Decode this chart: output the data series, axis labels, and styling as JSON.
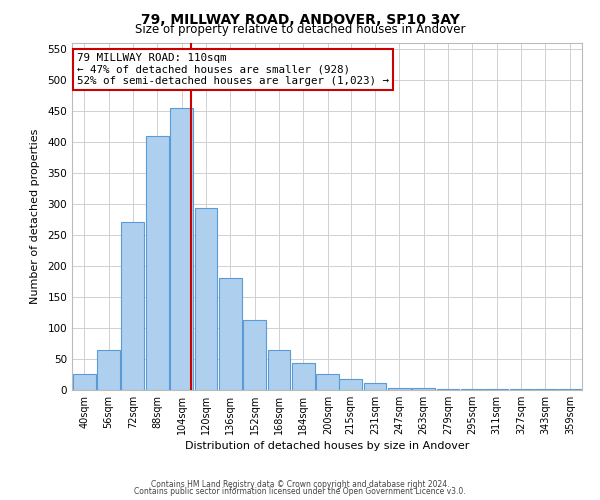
{
  "title": "79, MILLWAY ROAD, ANDOVER, SP10 3AY",
  "subtitle": "Size of property relative to detached houses in Andover",
  "xlabel": "Distribution of detached houses by size in Andover",
  "ylabel": "Number of detached properties",
  "bar_labels": [
    "40sqm",
    "56sqm",
    "72sqm",
    "88sqm",
    "104sqm",
    "120sqm",
    "136sqm",
    "152sqm",
    "168sqm",
    "184sqm",
    "200sqm",
    "215sqm",
    "231sqm",
    "247sqm",
    "263sqm",
    "279sqm",
    "295sqm",
    "311sqm",
    "327sqm",
    "343sqm",
    "359sqm"
  ],
  "bar_values": [
    25,
    65,
    270,
    410,
    455,
    293,
    180,
    113,
    65,
    43,
    25,
    18,
    12,
    3,
    4,
    2,
    1,
    2,
    1,
    1,
    1
  ],
  "bar_color": "#aed0ee",
  "bar_edge_color": "#5b9bd5",
  "vline_x": 110,
  "annotation_line1": "79 MILLWAY ROAD: 110sqm",
  "annotation_line2": "← 47% of detached houses are smaller (928)",
  "annotation_line3": "52% of semi-detached houses are larger (1,023) →",
  "vline_color": "#cc0000",
  "ylim": [
    0,
    560
  ],
  "yticks": [
    0,
    50,
    100,
    150,
    200,
    250,
    300,
    350,
    400,
    450,
    500,
    550
  ],
  "footer_line1": "Contains HM Land Registry data © Crown copyright and database right 2024.",
  "footer_line2": "Contains public sector information licensed under the Open Government Licence v3.0.",
  "background_color": "#ffffff",
  "grid_color": "#d0d0d0",
  "annotation_box_color": "#ffffff",
  "annotation_box_edge_color": "#cc0000"
}
